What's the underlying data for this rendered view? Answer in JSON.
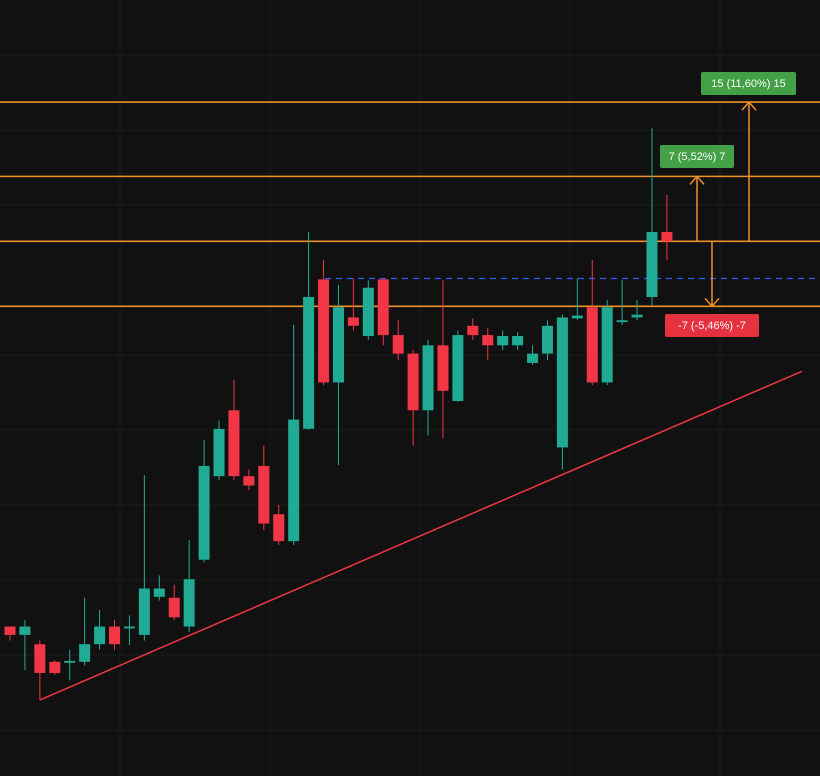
{
  "chart_data": {
    "type": "candlestick",
    "ylim": [
      71.4,
      155
    ],
    "up_color": "#22ab94",
    "down_color": "#f23645",
    "candles": [
      [
        87.5,
        87.5,
        86.0,
        86.6
      ],
      [
        86.6,
        88.2,
        82.8,
        87.5
      ],
      [
        85.6,
        86.0,
        79.6,
        82.5
      ],
      [
        83.7,
        83.9,
        82.3,
        82.5
      ],
      [
        83.6,
        85.0,
        81.7,
        83.8
      ],
      [
        83.7,
        90.6,
        83.3,
        85.6
      ],
      [
        85.6,
        89.3,
        85.0,
        87.5
      ],
      [
        87.5,
        88.2,
        85.0,
        85.6
      ],
      [
        87.3,
        88.7,
        85.5,
        87.5
      ],
      [
        86.6,
        103.8,
        86.0,
        91.6
      ],
      [
        90.7,
        93.0,
        90.3,
        91.6
      ],
      [
        90.6,
        92.0,
        88.2,
        88.5
      ],
      [
        87.5,
        96.8,
        86.9,
        92.6
      ],
      [
        94.7,
        107.6,
        94.4,
        104.8
      ],
      [
        103.7,
        109.7,
        103.3,
        108.8
      ],
      [
        110.8,
        114.1,
        103.3,
        103.7
      ],
      [
        103.7,
        104.4,
        102.2,
        102.7
      ],
      [
        104.8,
        107.0,
        97.9,
        98.6
      ],
      [
        99.6,
        100.6,
        96.3,
        96.7
      ],
      [
        96.7,
        120.0,
        96.3,
        109.8
      ],
      [
        108.8,
        130.0,
        108.7,
        123.0
      ],
      [
        124.9,
        127.0,
        113.5,
        113.8
      ],
      [
        113.8,
        124.3,
        104.9,
        121.9
      ],
      [
        120.8,
        125.0,
        119.4,
        119.9
      ],
      [
        118.8,
        124.8,
        118.4,
        124.0
      ],
      [
        124.9,
        125.0,
        117.8,
        118.9
      ],
      [
        118.9,
        120.5,
        116.2,
        116.9
      ],
      [
        116.9,
        117.3,
        107.0,
        110.8
      ],
      [
        110.8,
        118.4,
        108.1,
        117.8
      ],
      [
        117.8,
        124.8,
        107.8,
        112.9
      ],
      [
        111.8,
        119.4,
        111.7,
        118.9
      ],
      [
        119.9,
        120.7,
        118.4,
        118.9
      ],
      [
        118.9,
        119.7,
        116.2,
        117.8
      ],
      [
        117.8,
        119.4,
        117.3,
        118.8
      ],
      [
        117.8,
        119.2,
        117.3,
        118.8
      ],
      [
        115.9,
        117.8,
        115.7,
        116.9
      ],
      [
        116.9,
        120.5,
        116.2,
        119.9
      ],
      [
        106.8,
        121.1,
        104.4,
        120.8
      ],
      [
        120.7,
        125.0,
        120.5,
        121.0
      ],
      [
        121.9,
        127.0,
        113.5,
        113.8
      ],
      [
        113.8,
        122.7,
        113.5,
        121.9
      ],
      [
        120.3,
        124.8,
        120.0,
        120.5
      ],
      [
        120.8,
        122.7,
        120.5,
        121.1
      ],
      [
        123.0,
        141.2,
        122.1,
        130.0
      ],
      [
        130.0,
        134.0,
        127.0,
        129.0
      ]
    ],
    "levels": [
      144,
      136,
      129,
      122
    ],
    "level_color": "#f0902a",
    "dashed_level": 125.0,
    "dashed_color": "#2962ff",
    "trendline": [
      79.6,
      115.0
    ],
    "trend_color": "#f23645",
    "annotations": [
      {
        "text": "15 (11,60%) 15",
        "color": "#43a047"
      },
      {
        "text": "7 (5,52%) 7",
        "color": "#43a047"
      },
      {
        "text": "-7 (-5,46%) -7",
        "color": "#e53140"
      }
    ]
  }
}
